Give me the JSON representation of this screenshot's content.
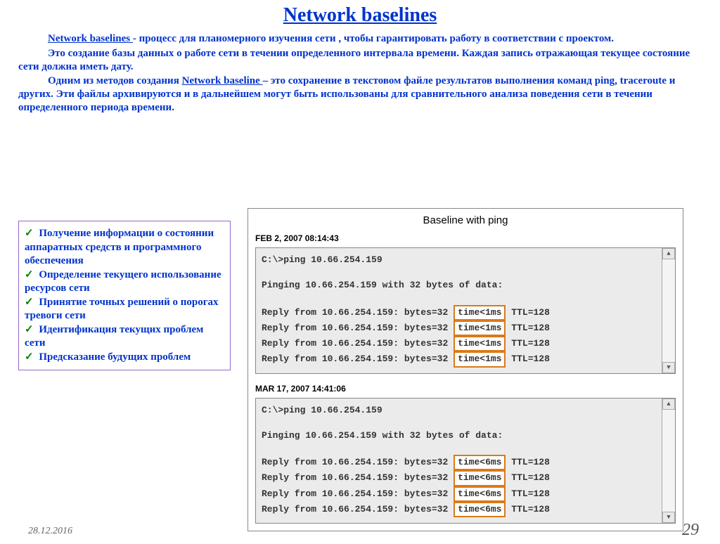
{
  "title": "Network baselines",
  "paragraphs": {
    "p1a": "Network baselines ",
    "p1b": " - процесс для планомерного изучения сети , чтобы гарантировать работу в соответствии  с  проектом.",
    "p2": "Это  создание базы данных о работе сети в течении определенного интервала времени. Каждая запись отражающая текущее состояние сети должна иметь дату.",
    "p3a": "Одним из методов создания ",
    "p3link": "Network baseline ",
    "p3b": "– это сохранение в текстовом  файле результатов выполнения команд  ping, traceroute  и других. Эти файлы архивируются и в дальнейшем могут быть использованы для сравнительного анализа поведения сети в течении определенного периода времени."
  },
  "bullets": [
    "Получение  информации  о состоянии аппаратных средств и программного обеспечения",
    "Определение  текущего использование ресурсов сети",
    "Принятие  точных решений о порогах тревоги сети",
    "Идентификация  текущих проблем  сети",
    "Предсказание будущих проблем"
  ],
  "figure": {
    "title": "Baseline with ping",
    "ts1": "FEB 2, 2007  08:14:43",
    "ts2": "MAR 17, 2007  14:41:06",
    "cmd": "C:\\>ping 10.66.254.159",
    "pingline": "Pinging 10.66.254.159 with 32 bytes of data:",
    "reply_prefix": "Reply from 10.66.254.159: bytes=32",
    "time1": "time<1ms",
    "time2": "time<6ms",
    "reply_suffix": "TTL=128",
    "highlight_border": "#d97a1a",
    "console_bg": "#ebebeb"
  },
  "footer": {
    "date": "28.12.2016",
    "page": "29"
  },
  "colors": {
    "title": "#0033cc",
    "text": "#0033cc",
    "check": "#008000",
    "box_border": "#9966cc"
  }
}
